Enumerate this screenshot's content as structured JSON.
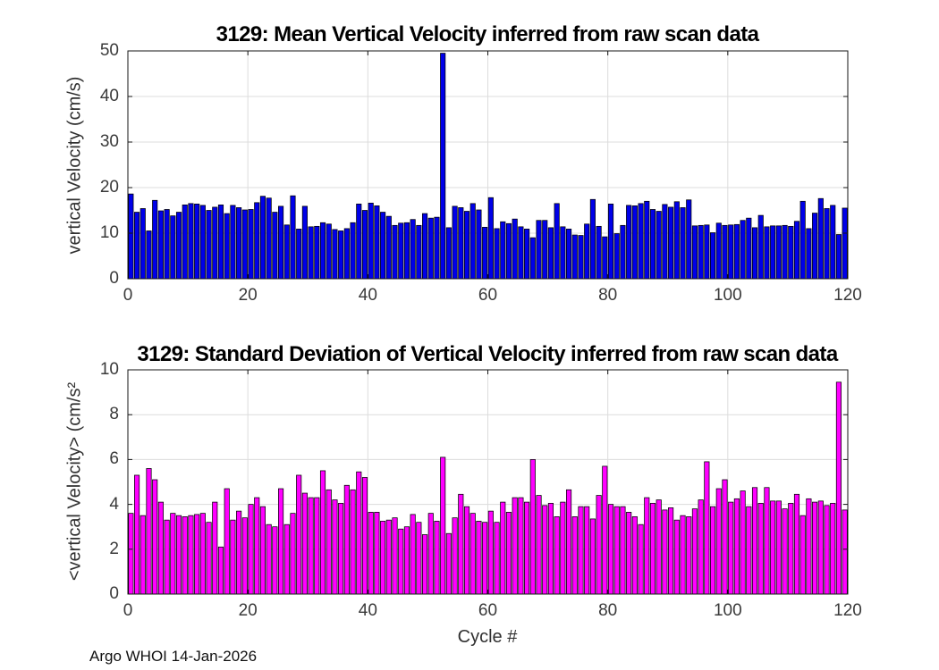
{
  "figure": {
    "footer": "Argo WHOI 14-Jan-2026",
    "xlabel": "Cycle #"
  },
  "chart_data": [
    {
      "type": "bar",
      "name": "mean-vertical-velocity-chart",
      "title": "3129: Mean Vertical Velocity inferred from raw scan data",
      "ylabel": "vertical Velocity (cm/s)",
      "xlabel": "",
      "bar_color": "#0000E8",
      "edge_color": "#000000",
      "grid": true,
      "legend": "none",
      "xlim": [
        0,
        120
      ],
      "ylim": [
        0,
        50
      ],
      "xticks": [
        0,
        20,
        40,
        60,
        80,
        100,
        120
      ],
      "yticks": [
        0,
        10,
        20,
        30,
        40,
        50
      ],
      "x_start": 0,
      "x_step": 1,
      "values": [
        18.6,
        14.6,
        15.4,
        10.5,
        17.2,
        14.9,
        15.2,
        13.8,
        14.6,
        16.2,
        16.5,
        16.4,
        16.1,
        15.0,
        15.7,
        16.2,
        14.3,
        16.1,
        15.6,
        15.1,
        15.2,
        16.7,
        18.1,
        17.7,
        14.6,
        15.9,
        11.8,
        18.2,
        10.9,
        15.9,
        11.4,
        11.5,
        12.3,
        12.0,
        10.8,
        10.5,
        11.0,
        12.3,
        16.4,
        15.0,
        16.6,
        16.0,
        14.6,
        13.7,
        11.7,
        12.2,
        12.3,
        13.0,
        11.7,
        14.3,
        13.3,
        13.5,
        49.5,
        11.2,
        15.9,
        15.6,
        14.8,
        16.5,
        15.1,
        11.3,
        17.8,
        11.0,
        12.5,
        12.1,
        13.1,
        11.4,
        10.9,
        9.0,
        12.8,
        12.8,
        11.2,
        16.5,
        11.4,
        10.9,
        9.6,
        9.5,
        12.0,
        17.4,
        11.5,
        9.2,
        16.4,
        9.9,
        11.7,
        16.1,
        16.0,
        16.5,
        17.0,
        15.2,
        14.8,
        16.3,
        15.7,
        16.9,
        15.6,
        17.3,
        11.6,
        11.7,
        11.8,
        10.1,
        12.2,
        11.7,
        11.8,
        11.9,
        12.8,
        13.3,
        11.2,
        13.9,
        11.4,
        11.6,
        11.6,
        11.7,
        11.5,
        12.6,
        17.0,
        11.0,
        14.4,
        17.6,
        15.4,
        16.1,
        9.7,
        15.5
      ]
    },
    {
      "type": "bar",
      "name": "std-vertical-velocity-chart",
      "title": "3129: Standard Deviation of Vertical Velocity inferred from raw scan data",
      "ylabel": "<vertical Velocity> (cm/s²",
      "xlabel": "Cycle #",
      "bar_color": "#FF00FF",
      "edge_color": "#000000",
      "grid": true,
      "legend": "none",
      "xlim": [
        0,
        120
      ],
      "ylim": [
        0,
        10
      ],
      "xticks": [
        0,
        20,
        40,
        60,
        80,
        100,
        120
      ],
      "yticks": [
        0,
        2,
        4,
        6,
        8,
        10
      ],
      "x_start": 0,
      "x_step": 1,
      "values": [
        3.6,
        5.3,
        3.5,
        5.6,
        5.1,
        4.1,
        3.3,
        3.6,
        3.5,
        3.45,
        3.5,
        3.55,
        3.6,
        3.2,
        4.1,
        2.1,
        4.7,
        3.3,
        3.7,
        3.4,
        4.0,
        4.3,
        3.9,
        3.1,
        3.0,
        4.7,
        3.1,
        3.6,
        5.3,
        4.5,
        4.3,
        4.3,
        5.5,
        4.65,
        4.2,
        4.05,
        4.85,
        4.65,
        5.45,
        5.2,
        3.65,
        3.65,
        3.25,
        3.3,
        3.4,
        2.9,
        3.0,
        3.55,
        3.2,
        2.65,
        3.6,
        3.25,
        6.1,
        2.7,
        3.4,
        4.45,
        3.9,
        3.6,
        3.25,
        3.2,
        3.7,
        3.2,
        4.1,
        3.65,
        4.3,
        4.3,
        4.1,
        6.0,
        4.4,
        3.95,
        4.05,
        3.45,
        4.1,
        4.65,
        3.45,
        3.9,
        3.9,
        3.35,
        4.4,
        5.7,
        4.0,
        3.9,
        3.9,
        3.65,
        3.45,
        3.1,
        4.3,
        4.05,
        4.2,
        3.75,
        3.85,
        3.3,
        3.5,
        3.45,
        3.8,
        4.2,
        5.9,
        3.9,
        4.7,
        5.1,
        4.1,
        4.25,
        4.6,
        3.9,
        4.75,
        4.05,
        4.75,
        4.15,
        4.15,
        3.8,
        4.05,
        4.45,
        3.5,
        4.25,
        4.1,
        4.15,
        3.95,
        4.05,
        9.45,
        3.75
      ]
    }
  ]
}
